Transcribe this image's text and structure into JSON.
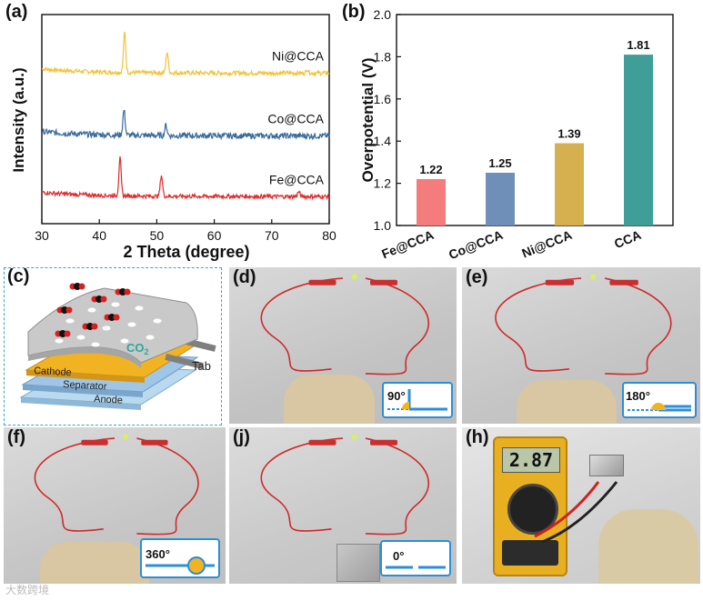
{
  "panels": {
    "a": "(a)",
    "b": "(b)",
    "c": "(c)",
    "d": "(d)",
    "e": "(e)",
    "f": "(f)",
    "j": "(j)",
    "h": "(h)"
  },
  "chart_data": [
    {
      "type": "line",
      "title": "",
      "xlabel": "2 Theta (degree)",
      "ylabel": "Intensity (a.u.)",
      "xlim": [
        30,
        80
      ],
      "xticks": [
        30,
        40,
        50,
        60,
        70,
        80
      ],
      "y_ticks_shown": false,
      "series": [
        {
          "name": "Ni@CCA",
          "color": "#f2c23a",
          "offset": 0.72,
          "noise": 0.01,
          "peaks": [
            {
              "x": 44.4,
              "h": 0.19
            },
            {
              "x": 51.8,
              "h": 0.1
            },
            {
              "x": 76.2,
              "h": 0.018
            }
          ]
        },
        {
          "name": "Co@CCA",
          "color": "#3b6a9c",
          "offset": 0.42,
          "noise": 0.014,
          "peaks": [
            {
              "x": 44.3,
              "h": 0.12
            },
            {
              "x": 51.6,
              "h": 0.05
            }
          ]
        },
        {
          "name": "Fe@CCA",
          "color": "#e02a2a",
          "offset": 0.13,
          "noise": 0.01,
          "peaks": [
            {
              "x": 43.6,
              "h": 0.18
            },
            {
              "x": 50.8,
              "h": 0.1
            },
            {
              "x": 74.7,
              "h": 0.022
            }
          ]
        }
      ]
    },
    {
      "type": "bar",
      "title": "",
      "xlabel": "",
      "ylabel": "Overpotential (V)",
      "ylim": [
        1.0,
        2.0
      ],
      "yticks": [
        1.0,
        1.2,
        1.4,
        1.6,
        1.8,
        2.0
      ],
      "categories": [
        "Fe@CCA",
        "Co@CCA",
        "Ni@CCA",
        "CCA"
      ],
      "values": [
        1.22,
        1.25,
        1.39,
        1.81
      ],
      "value_labels": [
        "1.22",
        "1.25",
        "1.39",
        "1.81"
      ],
      "colors": [
        "#f57c7c",
        "#6f8fb8",
        "#d6b04f",
        "#3f9f98"
      ]
    }
  ],
  "schematic": {
    "co2": "CO",
    "co2_sub": "2",
    "tab": "Tab",
    "cathode": "Cathode",
    "separator": "Separator",
    "anode": "Anode"
  },
  "angles": {
    "d": "90°",
    "e": "180°",
    "f": "360°",
    "j": "0°"
  },
  "multimeter": {
    "reading": "2.87"
  },
  "watermark": "大数跨境"
}
